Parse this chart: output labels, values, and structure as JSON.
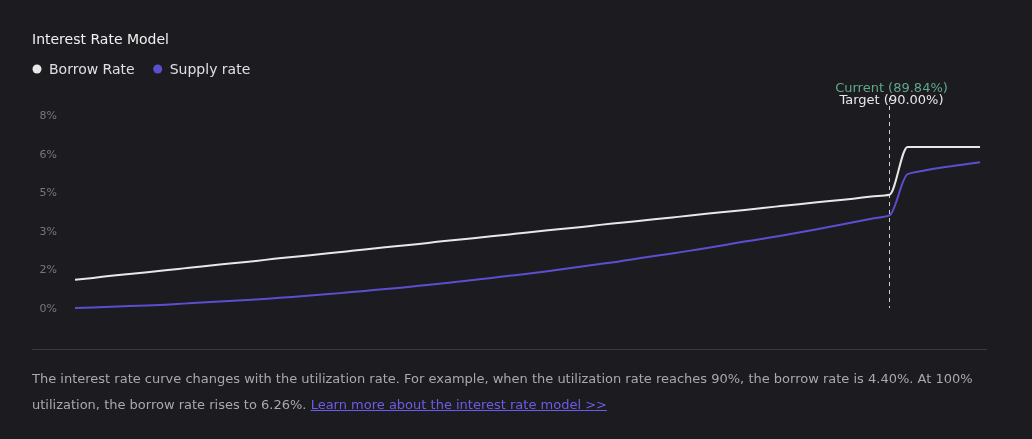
{
  "chart_data": {
    "type": "line",
    "title": "Interest Rate Model",
    "categories": [
      null,
      null,
      null,
      null,
      null,
      null,
      null,
      null,
      null,
      null,
      null,
      null,
      null,
      null,
      null,
      null,
      null,
      null,
      null,
      null,
      null,
      null,
      null,
      null,
      null,
      null,
      null,
      null,
      null,
      null,
      null,
      null,
      null,
      null,
      null,
      null,
      null,
      null,
      null,
      null,
      null,
      null,
      null,
      null,
      null,
      null,
      null,
      null,
      null,
      null,
      null
    ],
    "series": [
      {
        "name": "Borrow Rate",
        "color": "#e8e8e8",
        "values": [
          1.1,
          1.17,
          1.25,
          1.32,
          1.39,
          1.47,
          1.54,
          1.61,
          1.69,
          1.76,
          1.83,
          1.91,
          1.98,
          2.05,
          2.13,
          2.2,
          2.27,
          2.35,
          2.42,
          2.49,
          2.57,
          2.64,
          2.71,
          2.79,
          2.86,
          2.93,
          3.01,
          3.08,
          3.15,
          3.23,
          3.3,
          3.37,
          3.45,
          3.52,
          3.59,
          3.67,
          3.74,
          3.81,
          3.89,
          3.96,
          4.03,
          4.11,
          4.18,
          4.25,
          4.33,
          4.4,
          6.26,
          6.26,
          6.26,
          6.26,
          6.26
        ]
      },
      {
        "name": "Supply rate",
        "color": "#5b4fd0",
        "values": [
          0,
          0.02,
          0.05,
          0.08,
          0.1,
          0.13,
          0.17,
          0.21,
          0.25,
          0.29,
          0.33,
          0.38,
          0.43,
          0.49,
          0.54,
          0.6,
          0.66,
          0.73,
          0.79,
          0.86,
          0.93,
          1.01,
          1.09,
          1.17,
          1.25,
          1.33,
          1.42,
          1.52,
          1.61,
          1.71,
          1.8,
          1.91,
          2.02,
          2.12,
          2.23,
          2.34,
          2.46,
          2.58,
          2.69,
          2.81,
          2.93,
          3.06,
          3.2,
          3.33,
          3.47,
          3.6,
          5.2,
          5.35,
          5.47,
          5.57,
          5.66
        ]
      }
    ],
    "ylim": [
      0,
      7.5
    ],
    "yticks": [
      {
        "value": 0,
        "label": "0%"
      },
      {
        "value": 1.5,
        "label": "2%"
      },
      {
        "value": 3,
        "label": "3%"
      },
      {
        "value": 4.5,
        "label": "5%"
      },
      {
        "value": 6,
        "label": "6%"
      },
      {
        "value": 7.5,
        "label": "8%"
      }
    ],
    "tick_labels": "y",
    "legend": "top left",
    "line_style": "solid",
    "annotations": [
      "Current (89.84%)",
      "Target (90.00%)",
      "The interest rate curve changes with the utilization rate. For example, when the utilization rate reaches 90%, the borrow rate is 4.40%. At 100% utilization, the borrow rate rises to 6.26%.",
      "Learn more about the interest rate model >>"
    ]
  }
}
